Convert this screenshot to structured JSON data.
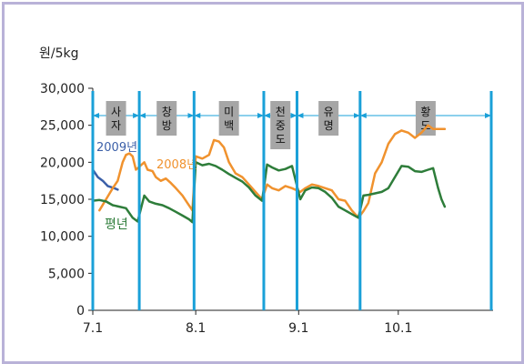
{
  "chart_data": {
    "type": "line",
    "ylabel": "원/5kg",
    "ylim": [
      0,
      30000
    ],
    "yticks": [
      0,
      5000,
      10000,
      15000,
      20000,
      25000,
      30000
    ],
    "ytick_labels": [
      "0",
      "5,000",
      "10,000",
      "15,000",
      "20,000",
      "25,000",
      "30,000"
    ],
    "xlim": [
      0,
      120
    ],
    "xticks": [
      {
        "day": 0,
        "label": "7.1"
      },
      {
        "day": 31,
        "label": "8.1"
      },
      {
        "day": 62,
        "label": "9.1"
      },
      {
        "day": 92,
        "label": "10.1"
      }
    ],
    "grid": false,
    "period_dividers": [
      0,
      14,
      30.5,
      51.5,
      61.5,
      80.5,
      120
    ],
    "periods": [
      {
        "label": "사\n자",
        "start": 0,
        "end": 14
      },
      {
        "label": "창\n방",
        "start": 14,
        "end": 30.5
      },
      {
        "label": "미\n백",
        "start": 30.5,
        "end": 51.5
      },
      {
        "label": "천\n중\n도",
        "start": 51.5,
        "end": 61.5
      },
      {
        "label": "유\n명",
        "start": 61.5,
        "end": 80.5
      },
      {
        "label": "황\n도",
        "start": 80.5,
        "end": 120
      }
    ],
    "series": [
      {
        "name": "2009년",
        "color": "#3b5fa8",
        "points": [
          [
            0,
            19000
          ],
          [
            1.5,
            18000
          ],
          [
            3,
            17500
          ],
          [
            4.5,
            16800
          ],
          [
            6.5,
            16500
          ],
          [
            7.5,
            16300
          ]
        ]
      },
      {
        "name": "2008년",
        "color": "#f0922e",
        "points": [
          [
            2,
            13500
          ],
          [
            4,
            15000
          ],
          [
            6,
            16500
          ],
          [
            7.5,
            17500
          ],
          [
            9,
            20000
          ],
          [
            10,
            21000
          ],
          [
            11,
            21200
          ],
          [
            12,
            20800
          ],
          [
            13,
            19000
          ],
          [
            15.5,
            20000
          ],
          [
            16.5,
            19000
          ],
          [
            18,
            18800
          ],
          [
            19,
            18000
          ],
          [
            20.5,
            17500
          ],
          [
            22,
            17800
          ],
          [
            23.5,
            17200
          ],
          [
            25,
            16500
          ],
          [
            27,
            15500
          ],
          [
            28.5,
            14500
          ],
          [
            30,
            13500
          ],
          [
            31,
            20800
          ],
          [
            33,
            20500
          ],
          [
            35,
            21000
          ],
          [
            36.5,
            23000
          ],
          [
            38,
            22800
          ],
          [
            39.5,
            22000
          ],
          [
            41,
            20000
          ],
          [
            43,
            18500
          ],
          [
            45,
            18000
          ],
          [
            47,
            17000
          ],
          [
            49,
            16000
          ],
          [
            51,
            15000
          ],
          [
            52.5,
            17000
          ],
          [
            54,
            16500
          ],
          [
            56,
            16200
          ],
          [
            58,
            16800
          ],
          [
            60,
            16500
          ],
          [
            62.5,
            16000
          ],
          [
            64,
            16500
          ],
          [
            66,
            17000
          ],
          [
            68,
            16800
          ],
          [
            70,
            16500
          ],
          [
            72,
            16200
          ],
          [
            74,
            15000
          ],
          [
            76,
            14800
          ],
          [
            78,
            13500
          ],
          [
            80,
            12500
          ],
          [
            81.5,
            13400
          ],
          [
            83,
            14500
          ],
          [
            85,
            18500
          ],
          [
            87,
            20000
          ],
          [
            89,
            22500
          ],
          [
            91,
            23800
          ],
          [
            93,
            24300
          ],
          [
            95,
            24000
          ],
          [
            97,
            23300
          ],
          [
            99,
            24000
          ],
          [
            101,
            25000
          ],
          [
            102.5,
            24500
          ],
          [
            104,
            24500
          ],
          [
            106,
            24500
          ]
        ]
      },
      {
        "name": "평년",
        "color": "#2e7d3a",
        "points": [
          [
            0,
            14800
          ],
          [
            2,
            14900
          ],
          [
            4,
            14700
          ],
          [
            6,
            14200
          ],
          [
            8,
            14000
          ],
          [
            10,
            13800
          ],
          [
            12,
            12500
          ],
          [
            13.5,
            12000
          ],
          [
            15.5,
            15500
          ],
          [
            17,
            14700
          ],
          [
            19,
            14400
          ],
          [
            21,
            14200
          ],
          [
            23,
            13800
          ],
          [
            25,
            13300
          ],
          [
            27,
            12800
          ],
          [
            29,
            12300
          ],
          [
            30,
            11900
          ],
          [
            31,
            20000
          ],
          [
            33,
            19600
          ],
          [
            35,
            19800
          ],
          [
            37,
            19500
          ],
          [
            39,
            19000
          ],
          [
            41,
            18400
          ],
          [
            43,
            17900
          ],
          [
            45,
            17400
          ],
          [
            47,
            16600
          ],
          [
            49,
            15500
          ],
          [
            51,
            14800
          ],
          [
            52.5,
            19700
          ],
          [
            54,
            19300
          ],
          [
            56,
            18900
          ],
          [
            58,
            19100
          ],
          [
            60,
            19500
          ],
          [
            62.5,
            15000
          ],
          [
            64,
            16200
          ],
          [
            66,
            16600
          ],
          [
            68,
            16500
          ],
          [
            70,
            16000
          ],
          [
            72,
            15200
          ],
          [
            74,
            14000
          ],
          [
            76,
            13500
          ],
          [
            78,
            13000
          ],
          [
            80,
            12500
          ],
          [
            81.5,
            15500
          ],
          [
            83,
            15600
          ],
          [
            85,
            15800
          ],
          [
            87,
            16000
          ],
          [
            89,
            16500
          ],
          [
            91,
            18000
          ],
          [
            93,
            19500
          ],
          [
            95,
            19400
          ],
          [
            97,
            18800
          ],
          [
            99,
            18700
          ],
          [
            101,
            19000
          ],
          [
            102.5,
            19200
          ],
          [
            104,
            16500
          ],
          [
            105,
            15000
          ],
          [
            106,
            14000
          ]
        ]
      }
    ],
    "series_labels": [
      "2009년",
      "2008년",
      "평년"
    ]
  }
}
